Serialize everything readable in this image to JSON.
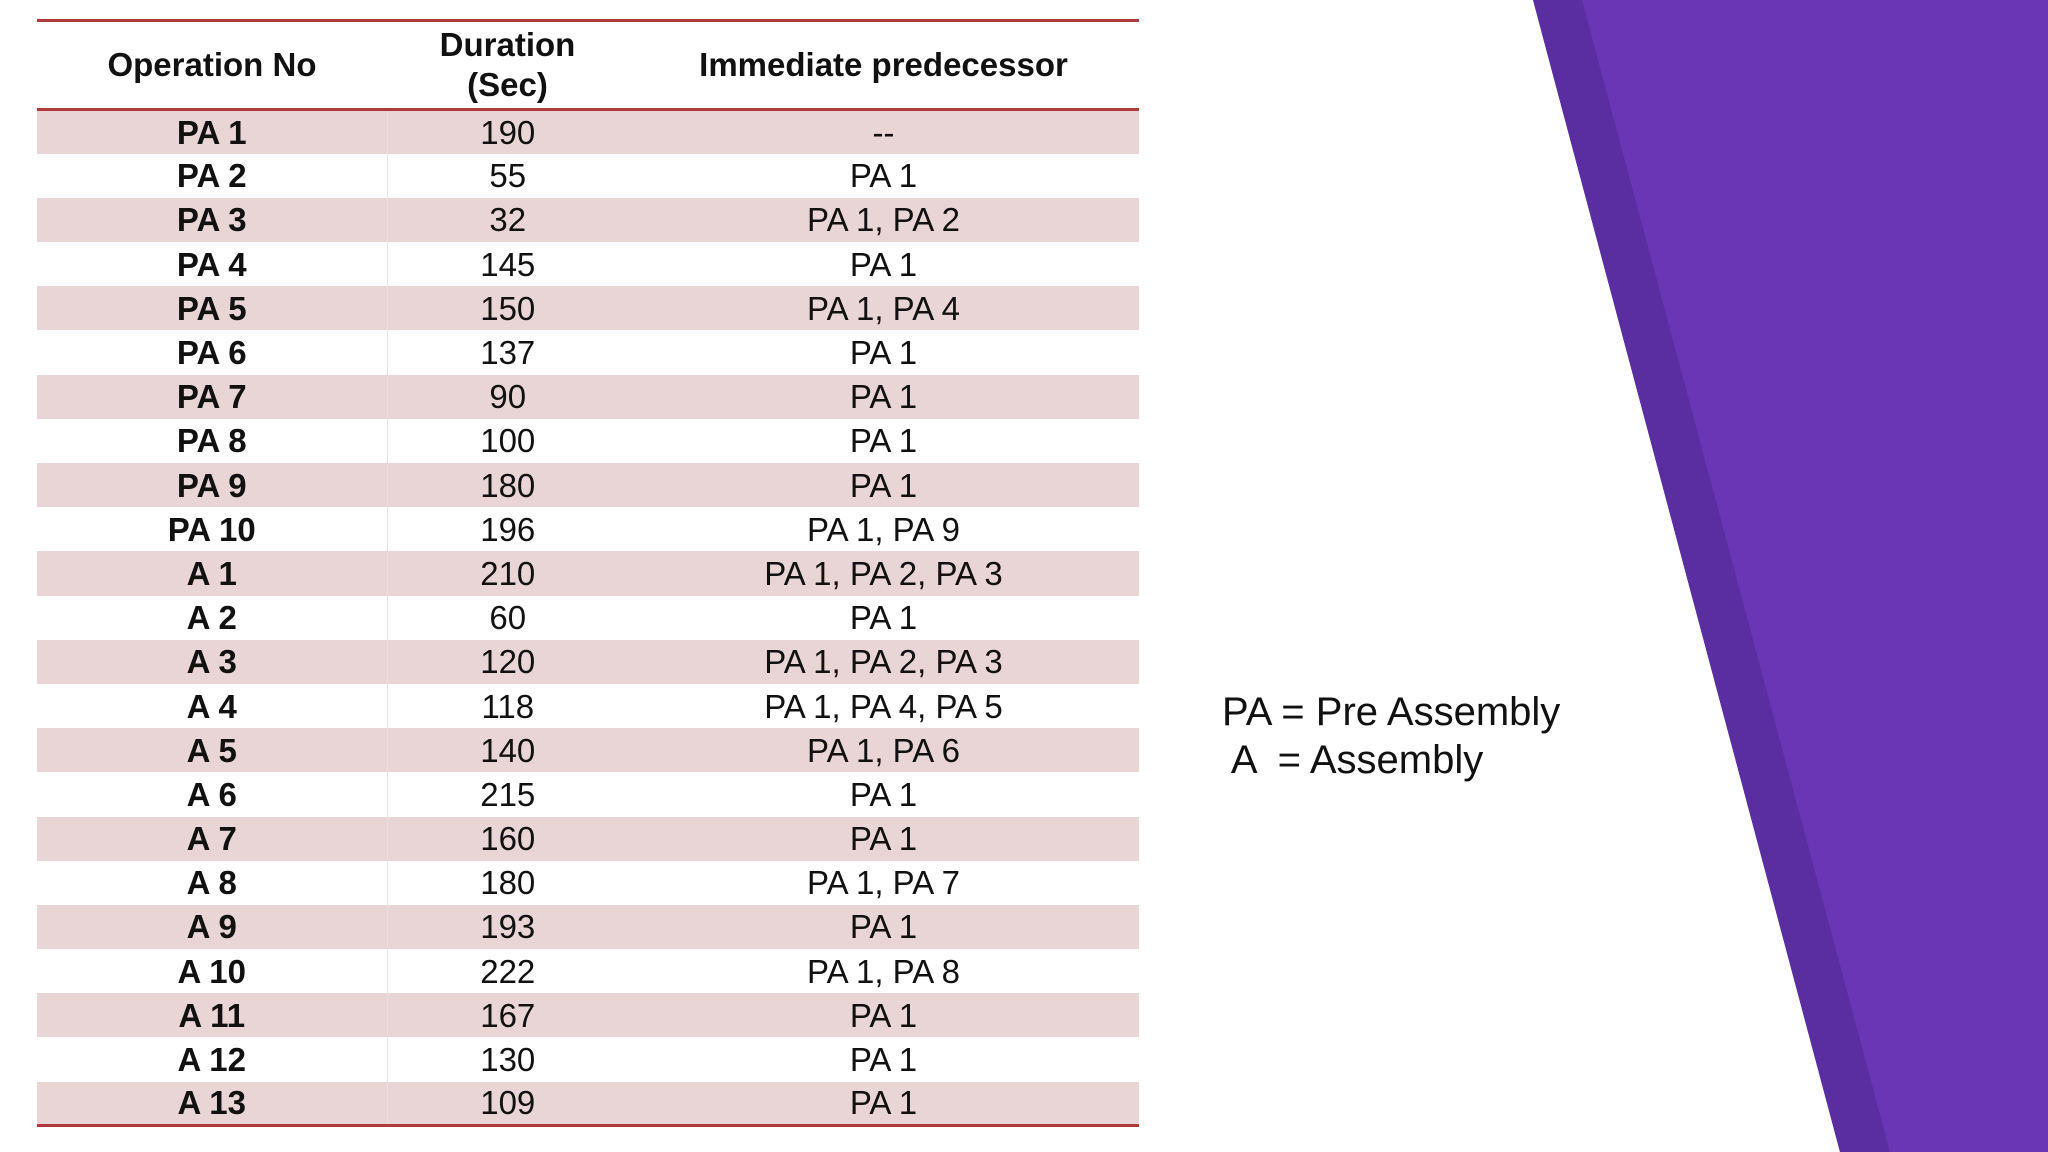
{
  "colors": {
    "accent_purple": "#6a36b6",
    "accent_purple_dark": "#5a2ea0",
    "header_rule": "#b03a3a",
    "stripe_row": "#ead5d6"
  },
  "table": {
    "headers": {
      "operation": "Operation No",
      "duration_line1": "Duration",
      "duration_line2": "(Sec)",
      "predecessor": "Immediate predecessor"
    },
    "rows": [
      {
        "op": "PA 1",
        "duration": "190",
        "pred": "--"
      },
      {
        "op": "PA 2",
        "duration": "55",
        "pred": "PA 1"
      },
      {
        "op": "PA 3",
        "duration": "32",
        "pred": "PA 1, PA 2"
      },
      {
        "op": "PA 4",
        "duration": "145",
        "pred": "PA 1"
      },
      {
        "op": "PA 5",
        "duration": "150",
        "pred": "PA 1, PA 4"
      },
      {
        "op": "PA 6",
        "duration": "137",
        "pred": "PA 1"
      },
      {
        "op": "PA 7",
        "duration": "90",
        "pred": "PA 1"
      },
      {
        "op": "PA 8",
        "duration": "100",
        "pred": "PA 1"
      },
      {
        "op": "PA 9",
        "duration": "180",
        "pred": "PA 1"
      },
      {
        "op": "PA 10",
        "duration": "196",
        "pred": "PA 1, PA 9"
      },
      {
        "op": "A 1",
        "duration": "210",
        "pred": "PA 1, PA 2, PA 3"
      },
      {
        "op": "A 2",
        "duration": "60",
        "pred": "PA 1"
      },
      {
        "op": "A 3",
        "duration": "120",
        "pred": "PA 1, PA 2, PA 3"
      },
      {
        "op": "A 4",
        "duration": "118",
        "pred": "PA 1, PA 4, PA 5"
      },
      {
        "op": "A 5",
        "duration": "140",
        "pred": "PA 1, PA 6"
      },
      {
        "op": "A 6",
        "duration": "215",
        "pred": "PA 1"
      },
      {
        "op": "A 7",
        "duration": "160",
        "pred": "PA 1"
      },
      {
        "op": "A 8",
        "duration": "180",
        "pred": "PA 1, PA 7"
      },
      {
        "op": "A 9",
        "duration": "193",
        "pred": "PA 1"
      },
      {
        "op": "A 10",
        "duration": "222",
        "pred": "PA 1, PA 8"
      },
      {
        "op": "A 11",
        "duration": "167",
        "pred": "PA 1"
      },
      {
        "op": "A 12",
        "duration": "130",
        "pred": "PA 1"
      },
      {
        "op": "A 13",
        "duration": "109",
        "pred": "PA 1"
      }
    ]
  },
  "legend": {
    "line1": "PA = Pre Assembly",
    "line2": " A  = Assembly"
  }
}
